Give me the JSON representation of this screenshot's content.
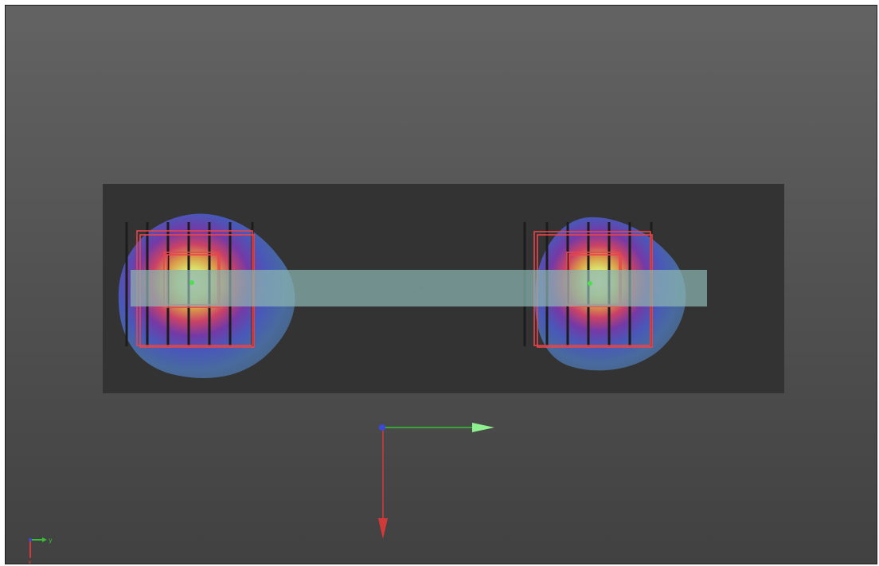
{
  "viewport": {
    "name": "3d-viewport",
    "background_top": "#636363",
    "background_bottom": "#414141"
  },
  "scene": {
    "platform_color": "#333333",
    "beam_color": "#8ab6b2",
    "frame_color": "#e8454a",
    "rail_color": "#1c1c1c",
    "center_marker_color": "#4ee04e",
    "objects": [
      {
        "name": "left-assembly",
        "heatmap": true
      },
      {
        "name": "right-assembly",
        "heatmap": true
      }
    ]
  },
  "axes": {
    "x_color": "#d23a3a",
    "y_color": "#34c234",
    "z_color": "#3a4ad6"
  },
  "orientation_widget": {
    "y_label": "y",
    "x_label": "x"
  }
}
